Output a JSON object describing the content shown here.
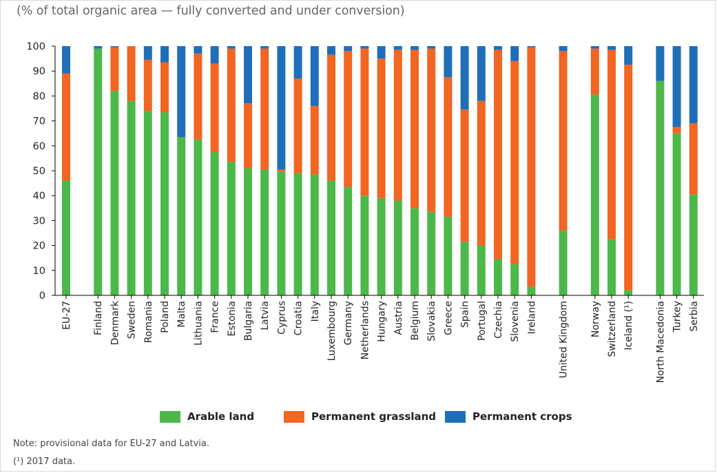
{
  "title": "(% of total organic area — fully converted and under conversion)",
  "notes": [
    "Note: provisional data for EU-27 and Latvia.",
    "(¹)  2017 data."
  ],
  "colors": {
    "arable": "#4cb84a",
    "grassland": "#f26522",
    "crops": "#1f6fb8"
  },
  "chart_data": {
    "type": "bar",
    "stacked": true,
    "categories": [
      "EU-27",
      "Finland",
      "Denmark",
      "Sweden",
      "Romania",
      "Poland",
      "Malta",
      "Lithuania",
      "France",
      "Estonia",
      "Bulgaria",
      "Latvia",
      "Cyprus",
      "Croatia",
      "Italy",
      "Luxembourg",
      "Germany",
      "Netherlands",
      "Hungary",
      "Austria",
      "Belgium",
      "Slovakia",
      "Greece",
      "Spain",
      "Portugal",
      "Czechia",
      "Slovenia",
      "Ireland",
      "United Kingdom",
      "Norway",
      "Switzerland",
      "Iceland (¹)",
      "North Macedonia",
      "Turkey",
      "Serbia"
    ],
    "ylim": [
      0,
      100
    ],
    "yticks": [
      0,
      10,
      20,
      30,
      40,
      50,
      60,
      70,
      80,
      90,
      100
    ],
    "legend_position": "bottom",
    "grid": false,
    "series": [
      {
        "name": "Arable land",
        "values": [
          46,
          99,
          82,
          78,
          74,
          73.5,
          63.5,
          62.5,
          57.5,
          53.5,
          51,
          50.5,
          49.5,
          49,
          48.5,
          46,
          43.5,
          40,
          39,
          38,
          35,
          33.5,
          31.5,
          21.5,
          20,
          14.5,
          12.5,
          3.5,
          26,
          80.5,
          22.5,
          2,
          86,
          65,
          40.5
        ]
      },
      {
        "name": "Permanent grassland",
        "values": [
          43,
          0,
          17.5,
          22,
          20.5,
          20,
          0,
          34.5,
          35.5,
          45.5,
          26,
          48.5,
          1,
          38,
          27.5,
          50.5,
          54.5,
          59,
          56,
          60.5,
          63.5,
          65.5,
          56,
          53,
          58,
          84,
          81.5,
          96,
          72,
          18.5,
          76,
          90.5,
          0,
          2.5,
          28.5
        ]
      },
      {
        "name": "Permanent crops",
        "values": [
          11,
          1,
          0.5,
          0,
          5.5,
          6.5,
          36.5,
          3,
          7,
          1,
          23,
          1,
          49.5,
          13,
          24,
          3.5,
          2,
          1,
          5,
          1.5,
          1.5,
          1,
          12.5,
          25.5,
          22,
          1.5,
          6,
          0.5,
          2,
          1,
          1.5,
          7.5,
          14,
          32.5,
          31
        ]
      }
    ]
  }
}
